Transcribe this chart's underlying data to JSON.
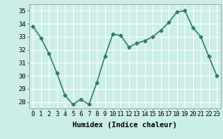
{
  "x": [
    0,
    1,
    2,
    3,
    4,
    5,
    6,
    7,
    8,
    9,
    10,
    11,
    12,
    13,
    14,
    15,
    16,
    17,
    18,
    19,
    20,
    21,
    22,
    23
  ],
  "y": [
    33.8,
    32.9,
    31.7,
    30.2,
    28.5,
    27.8,
    28.2,
    27.8,
    29.5,
    31.5,
    33.2,
    33.1,
    32.2,
    32.5,
    32.7,
    33.0,
    33.5,
    34.1,
    34.9,
    35.0,
    33.7,
    33.0,
    31.5,
    30.0
  ],
  "line_color": "#2e7d6e",
  "marker": "D",
  "marker_size": 2.5,
  "bg_color": "#cceee8",
  "grid_color": "#ffffff",
  "xlabel": "Humidex (Indice chaleur)",
  "ylim": [
    27.5,
    35.5
  ],
  "xlim": [
    -0.5,
    23.5
  ],
  "yticks": [
    28,
    29,
    30,
    31,
    32,
    33,
    34,
    35
  ],
  "xtick_labels": [
    "0",
    "1",
    "2",
    "3",
    "4",
    "5",
    "6",
    "7",
    "8",
    "9",
    "10",
    "11",
    "12",
    "13",
    "14",
    "15",
    "16",
    "17",
    "18",
    "19",
    "20",
    "21",
    "22",
    "23"
  ],
  "xlabel_fontsize": 7.5,
  "tick_fontsize": 6.5,
  "linewidth": 1.2
}
